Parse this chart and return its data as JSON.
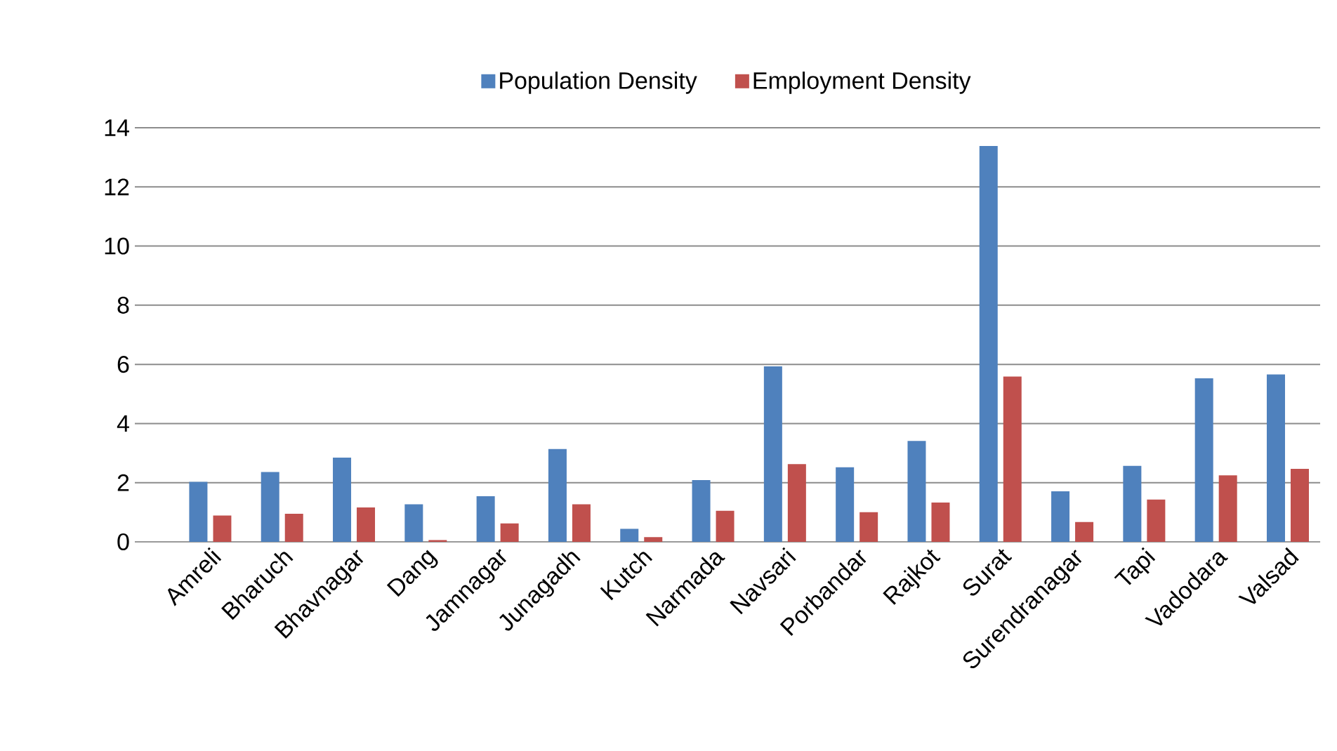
{
  "chart_data": {
    "type": "bar",
    "categories": [
      "Amreli",
      "Bharuch",
      "Bhavnagar",
      "Dang",
      "Jamnagar",
      "Junagadh",
      "Kutch",
      "Narmada",
      "Navsari",
      "Porbandar",
      "Rajkot",
      "Surat",
      "Surendranagar",
      "Tapi",
      "Vadodara",
      "Valsad"
    ],
    "series": [
      {
        "name": "Population Density",
        "color": "#4f81bd",
        "values": [
          2.03,
          2.36,
          2.85,
          1.27,
          1.54,
          3.14,
          0.44,
          2.09,
          5.93,
          2.52,
          3.41,
          13.38,
          1.71,
          2.57,
          5.53,
          5.66
        ]
      },
      {
        "name": "Employment Density",
        "color": "#c0504d",
        "values": [
          0.89,
          0.95,
          1.16,
          0.06,
          0.62,
          1.27,
          0.16,
          1.05,
          2.63,
          1.0,
          1.33,
          5.59,
          0.67,
          1.43,
          2.25,
          2.47
        ]
      }
    ],
    "ylim": [
      0,
      14
    ],
    "yticks": [
      0,
      2,
      4,
      6,
      8,
      10,
      12,
      14
    ],
    "grid": "y",
    "legend": "top"
  }
}
